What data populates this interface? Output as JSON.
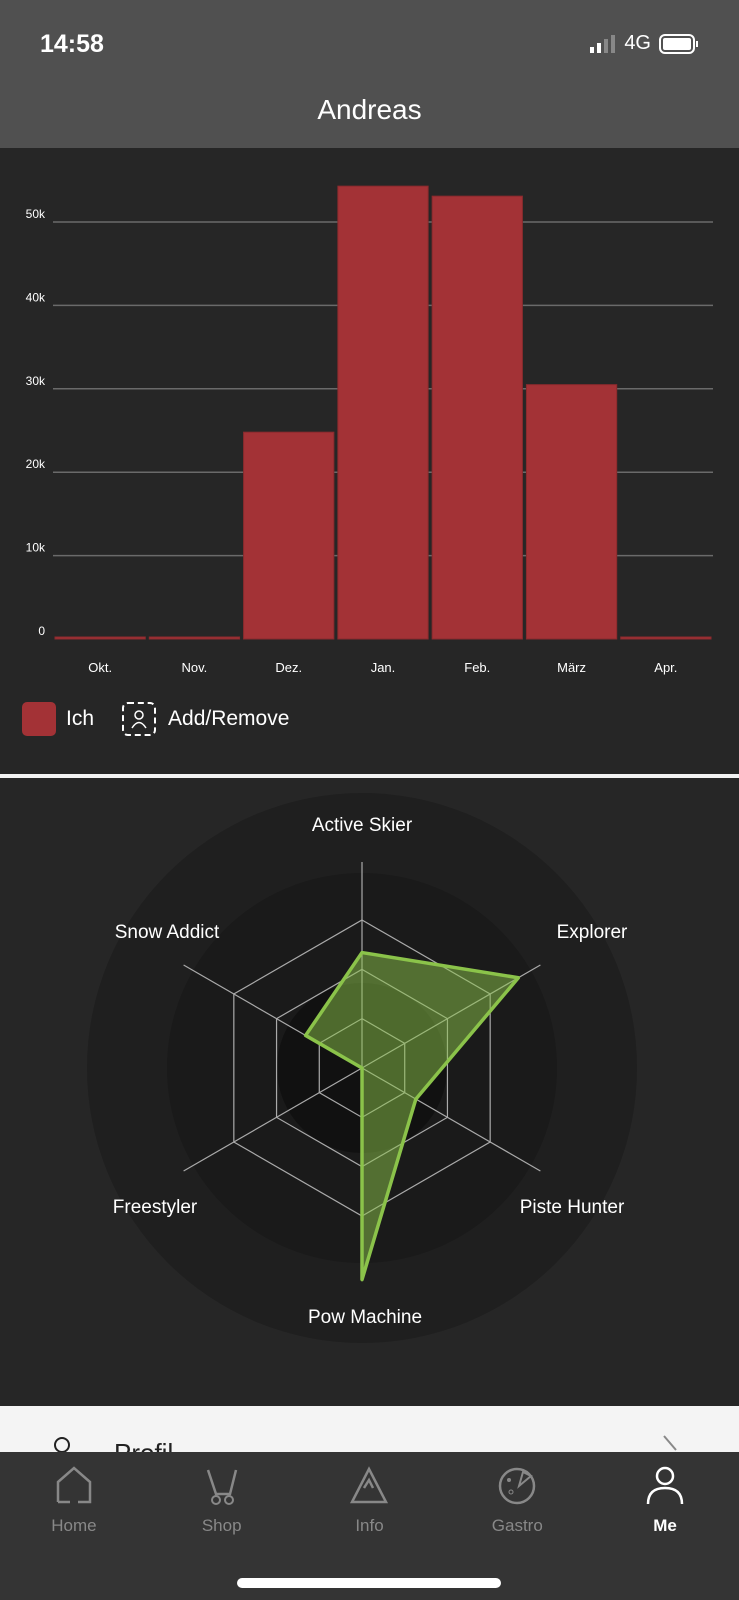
{
  "status": {
    "time": "14:58",
    "network": "4G"
  },
  "header": {
    "title": "Andreas"
  },
  "chart_data": [
    {
      "type": "bar",
      "categories": [
        "Okt.",
        "Nov.",
        "Dez.",
        "Jan.",
        "Feb.",
        "März",
        "Apr."
      ],
      "series": [
        {
          "name": "Ich",
          "values": [
            0,
            0,
            24800,
            54300,
            53100,
            30500,
            0
          ]
        }
      ],
      "yticks": [
        "0",
        "10k",
        "20k",
        "30k",
        "40k",
        "50k"
      ],
      "ylim": [
        0,
        55000
      ],
      "grid": true,
      "legend": "bottom-left",
      "color": "#a33236"
    },
    {
      "type": "radar",
      "axes": [
        "Active Skier",
        "Explorer",
        "Piste Hunter",
        "Pow Machine",
        "Freestyler",
        "Snow Addict"
      ],
      "values": [
        0.78,
        1.22,
        0.42,
        1.43,
        0,
        0.44
      ],
      "rmax": 1,
      "color": "#8bc34a"
    }
  ],
  "legend": {
    "series_label": "Ich",
    "add_remove": "Add/Remove"
  },
  "profil": {
    "label": "Profil"
  },
  "tabs": [
    {
      "label": "Home",
      "icon": "home-icon"
    },
    {
      "label": "Shop",
      "icon": "cart-icon"
    },
    {
      "label": "Info",
      "icon": "mountain-icon"
    },
    {
      "label": "Gastro",
      "icon": "pizza-icon"
    },
    {
      "label": "Me",
      "icon": "person-icon",
      "active": true
    }
  ]
}
